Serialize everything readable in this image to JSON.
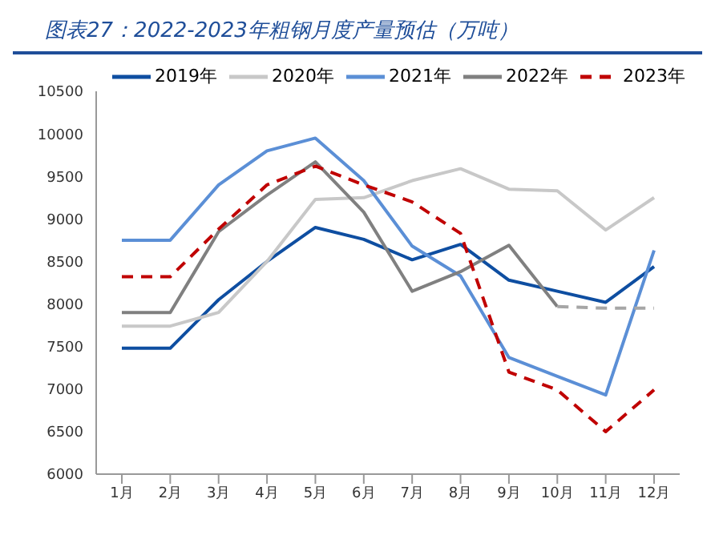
{
  "chart_data": {
    "type": "line",
    "title": "图表27：2022-2023年粗钢月度产量预估（万吨）",
    "categories": [
      "1月",
      "2月",
      "3月",
      "4月",
      "5月",
      "6月",
      "7月",
      "8月",
      "9月",
      "10月",
      "11月",
      "12月"
    ],
    "series": [
      {
        "name": "2019年",
        "color": "#0e4ea1",
        "values": [
          7480,
          7480,
          8050,
          8500,
          8900,
          8760,
          8520,
          8700,
          8280,
          8150,
          8020,
          8440
        ]
      },
      {
        "name": "2020年",
        "color": "#c8c8c8",
        "values": [
          7740,
          7740,
          7900,
          8500,
          9230,
          9250,
          9450,
          9590,
          9350,
          9330,
          8870,
          9250
        ]
      },
      {
        "name": "2021年",
        "color": "#5b8fd6",
        "values": [
          8750,
          8750,
          9400,
          9800,
          9950,
          9450,
          8680,
          8330,
          7370,
          7150,
          6930,
          8630
        ]
      },
      {
        "name": "2022年",
        "color": "#808080",
        "values": [
          7900,
          7900,
          8850,
          9280,
          9670,
          9080,
          8150,
          8380,
          8690,
          7970,
          null,
          null
        ]
      },
      {
        "color": "#a6a6a6",
        "line_style": "dashed",
        "values": [
          null,
          null,
          null,
          null,
          null,
          null,
          null,
          null,
          null,
          7970,
          7950,
          7950
        ]
      },
      {
        "name": "2023年",
        "color": "#c00000",
        "line_style": "dashed",
        "values": [
          8320,
          8320,
          8880,
          9400,
          9620,
          9400,
          9200,
          8830,
          7200,
          6990,
          6500,
          6990
        ]
      }
    ],
    "ylim": [
      6000,
      10500
    ],
    "yticks": [
      6000,
      6500,
      7000,
      7500,
      8000,
      8500,
      9000,
      9500,
      10000,
      10500
    ],
    "legend": "top",
    "marker": "none",
    "line_style": "solid"
  }
}
